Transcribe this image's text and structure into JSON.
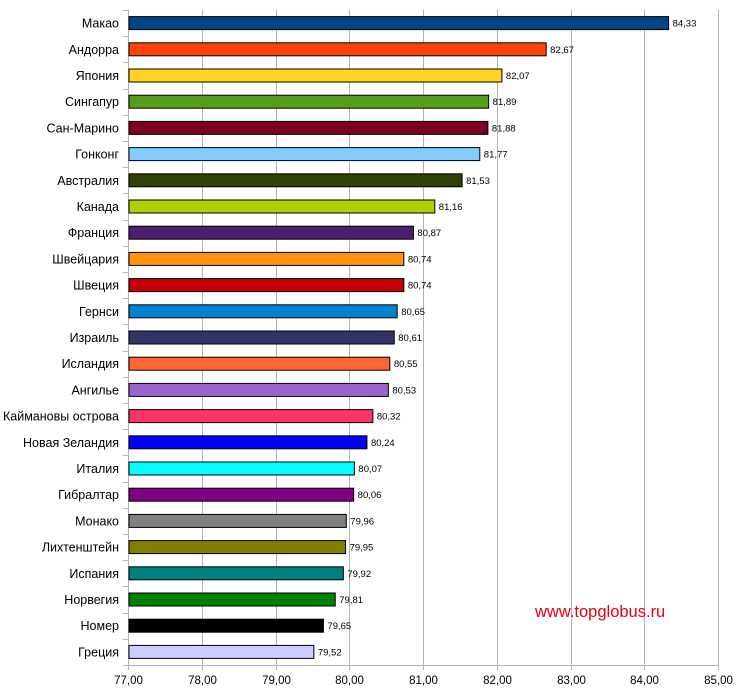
{
  "watermark": "www.topglobus.ru",
  "chart_data": {
    "type": "bar",
    "orientation": "horizontal",
    "title": "",
    "xlabel": "",
    "ylabel": "",
    "xlim": [
      77,
      85
    ],
    "x_ticks": [
      "77,00",
      "78,00",
      "79,00",
      "80,00",
      "81,00",
      "82,00",
      "83,00",
      "84,00",
      "85,00"
    ],
    "grid": "vertical",
    "categories": [
      "Макао",
      "Андорра",
      "Япония",
      "Сингапур",
      "Сан-Марино",
      "Гонконг",
      "Австралия",
      "Канада",
      "Франция",
      "Швейцария",
      "Швеция",
      "Гернси",
      "Израиль",
      "Исландия",
      "Ангилье",
      "Каймановы острова",
      "Новая Зеландия",
      "Италия",
      "Гибралтар",
      "Монако",
      "Лихтенштейн",
      "Испания",
      "Норвегия",
      "Номер",
      "Греция"
    ],
    "values": [
      84.33,
      82.67,
      82.07,
      81.89,
      81.88,
      81.77,
      81.53,
      81.16,
      80.87,
      80.74,
      80.74,
      80.65,
      80.61,
      80.55,
      80.53,
      80.32,
      80.24,
      80.07,
      80.06,
      79.96,
      79.95,
      79.92,
      79.81,
      79.65,
      79.52
    ],
    "value_labels": [
      "84,33",
      "82,67",
      "82,07",
      "81,89",
      "81,88",
      "81,77",
      "81,53",
      "81,16",
      "80,87",
      "80,74",
      "80,74",
      "80,65",
      "80,61",
      "80,55",
      "80,53",
      "80,32",
      "80,24",
      "80,07",
      "80,06",
      "79,96",
      "79,95",
      "79,92",
      "79,81",
      "79,65",
      "79,52"
    ],
    "colors": [
      "#004586",
      "#ff420e",
      "#ffd320",
      "#579d1c",
      "#7e0021",
      "#83caff",
      "#314004",
      "#aecf00",
      "#4b1f6f",
      "#ff950e",
      "#c5000b",
      "#0084d1",
      "#333366",
      "#ff6633",
      "#9966cc",
      "#ff3366",
      "#0000ff",
      "#00ffff",
      "#800080",
      "#808080",
      "#808000",
      "#008080",
      "#008000",
      "#000000",
      "#ccccff"
    ]
  }
}
